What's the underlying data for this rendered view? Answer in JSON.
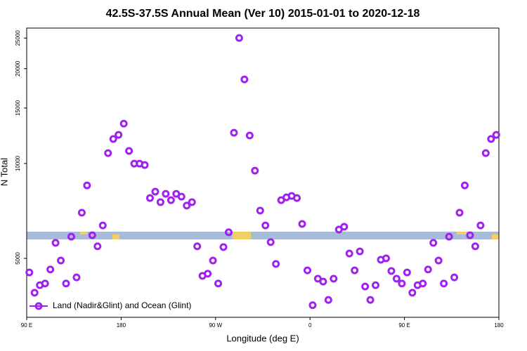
{
  "chart_data": {
    "type": "scatter",
    "title": "42.5S-37.5S Annual Mean (Ver 10)   2015-01-01 to 2020-12-18",
    "x_label": "Longitude (deg E)",
    "y_label": "N Total",
    "x": [
      92.5,
      97.5,
      102.5,
      107.5,
      112.5,
      117.5,
      122.5,
      127.5,
      132.5,
      137.5,
      142.5,
      147.5,
      152.5,
      157.5,
      162.5,
      167.5,
      172.5,
      177.5,
      182.5,
      187.5,
      192.5,
      197.5,
      202.5,
      207.5,
      212.5,
      217.5,
      222.5,
      227.5,
      232.5,
      237.5,
      242.5,
      247.5,
      252.5,
      257.5,
      262.5,
      267.5,
      272.5,
      277.5,
      282.5,
      287.5,
      292.5,
      297.5,
      302.5,
      307.5,
      312.5,
      317.5,
      322.5,
      327.5,
      332.5,
      337.5,
      342.5,
      347.5,
      352.5,
      357.5,
      362.5,
      367.5,
      372.5,
      377.5,
      382.5,
      387.5,
      392.5,
      397.5,
      402.5,
      407.5,
      412.5,
      417.5,
      422.5,
      427.5,
      432.5,
      437.5,
      442.5,
      447.5,
      452.5,
      457.5,
      462.5,
      467.5,
      472.5,
      477.5,
      482.5,
      487.5,
      492.5,
      497.5,
      502.5,
      507.5,
      512.5,
      517.5,
      522.5,
      527.5,
      532.5,
      537.5
    ],
    "series": [
      {
        "name": "Land (Nadir&Glint) and Ocean (Glint)",
        "color": "#a020f0",
        "values": [
          4510,
          3890,
          4110,
          4160,
          4610,
          5600,
          4920,
          4160,
          5860,
          4350,
          6980,
          8520,
          5920,
          5460,
          6360,
          10790,
          11960,
          12330,
          13380,
          10960,
          9990,
          9990,
          9890,
          7770,
          8140,
          7540,
          8010,
          7650,
          8010,
          7850,
          7350,
          7540,
          5460,
          4400,
          4470,
          4920,
          4160,
          5430,
          6050,
          12520,
          25020,
          18490,
          12270,
          9490,
          7090,
          6360,
          5630,
          4800,
          7650,
          7810,
          7890,
          7770,
          6430,
          4580,
          3550,
          4310,
          4220,
          3690,
          4310,
          6170,
          6300,
          5180,
          4580,
          5260,
          4070,
          3690,
          4110,
          4950,
          5000,
          4560,
          4310,
          4160,
          4510,
          3890,
          4110,
          4160,
          4610,
          5600,
          4920,
          4160,
          5860,
          4350,
          6980,
          8520,
          5920,
          5460,
          6360,
          10790,
          11960,
          12330
        ]
      }
    ],
    "xlim": [
      90,
      540
    ],
    "xticks": [
      {
        "value": 90,
        "label": "90 E"
      },
      {
        "value": 180,
        "label": "180"
      },
      {
        "value": 270,
        "label": "90 W"
      },
      {
        "value": 360,
        "label": "0"
      },
      {
        "value": 450,
        "label": "90 E"
      },
      {
        "value": 540,
        "label": "180"
      }
    ],
    "ylim": [
      3250,
      26900
    ],
    "yticks": [
      5000,
      10000,
      15000,
      20000,
      25000
    ],
    "y_scale": "log",
    "legend": "lower left"
  }
}
